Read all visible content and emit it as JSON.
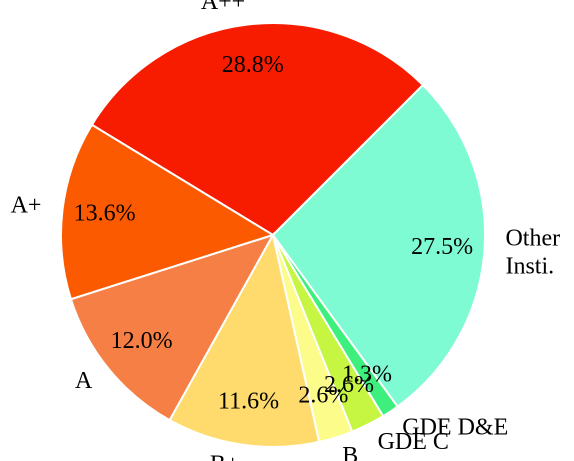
{
  "chart_data": {
    "type": "pie",
    "categories": [
      "A++",
      "A+",
      "A",
      "B+",
      "B",
      "GDE C",
      "GDE D&E",
      "Other\nInsti."
    ],
    "values": [
      28.8,
      13.6,
      12.0,
      11.6,
      2.6,
      2.6,
      1.3,
      27.5
    ],
    "value_labels": [
      "28.8%",
      "13.6%",
      "12.0%",
      "11.6%",
      "2.6%",
      "2.6%",
      "1.3%",
      "27.5%"
    ],
    "colors": [
      "#f71c00",
      "#fb5a00",
      "#f57f45",
      "#ffdb6e",
      "#fbfc8a",
      "#c6f542",
      "#3df07e",
      "#7efbd2"
    ],
    "startangle": 45
  }
}
